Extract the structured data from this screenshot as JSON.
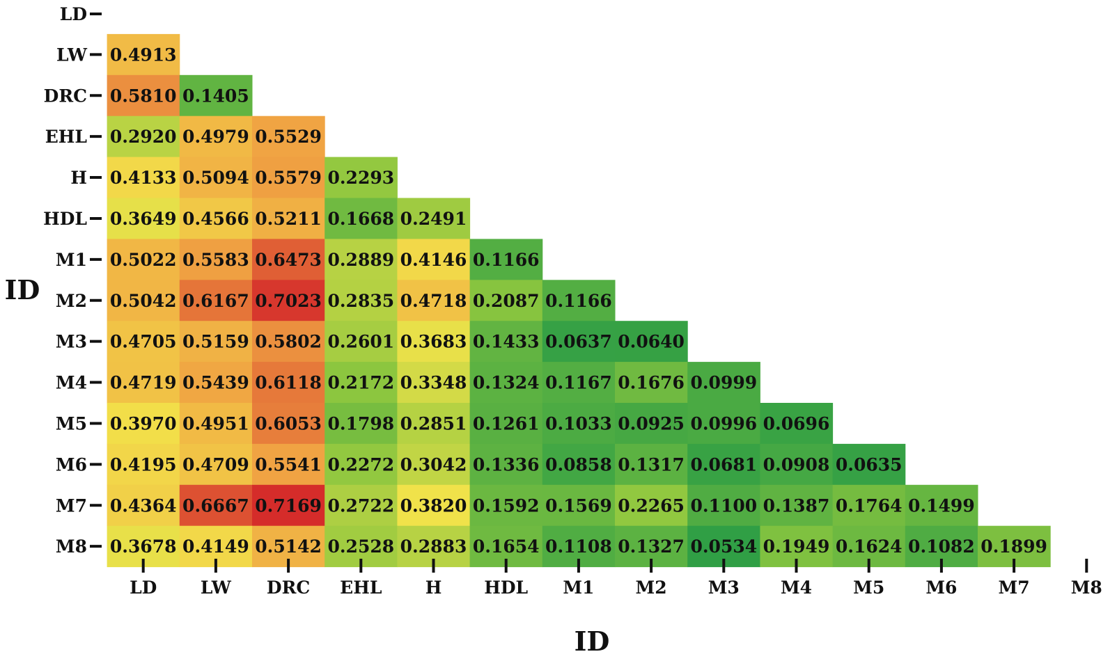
{
  "chart_data": {
    "type": "heatmap",
    "xlabel": "ID",
    "ylabel": "ID",
    "x_categories": [
      "LD",
      "LW",
      "DRC",
      "EHL",
      "H",
      "HDL",
      "M1",
      "M2",
      "M3",
      "M4",
      "M5",
      "M6",
      "M7",
      "M8"
    ],
    "y_categories": [
      "LD",
      "LW",
      "DRC",
      "EHL",
      "H",
      "HDL",
      "M1",
      "M2",
      "M3",
      "M4",
      "M5",
      "M6",
      "M7",
      "M8"
    ],
    "values": [
      [],
      [
        "0.4913"
      ],
      [
        "0.5810",
        "0.1405"
      ],
      [
        "0.2920",
        "0.4979",
        "0.5529"
      ],
      [
        "0.4133",
        "0.5094",
        "0.5579",
        "0.2293"
      ],
      [
        "0.3649",
        "0.4566",
        "0.5211",
        "0.1668",
        "0.2491"
      ],
      [
        "0.5022",
        "0.5583",
        "0.6473",
        "0.2889",
        "0.4146",
        "0.1166"
      ],
      [
        "0.5042",
        "0.6167",
        "0.7023",
        "0.2835",
        "0.4718",
        "0.2087",
        "0.1166"
      ],
      [
        "0.4705",
        "0.5159",
        "0.5802",
        "0.2601",
        "0.3683",
        "0.1433",
        "0.0637",
        "0.0640"
      ],
      [
        "0.4719",
        "0.5439",
        "0.6118",
        "0.2172",
        "0.3348",
        "0.1324",
        "0.1167",
        "0.1676",
        "0.0999"
      ],
      [
        "0.3970",
        "0.4951",
        "0.6053",
        "0.1798",
        "0.2851",
        "0.1261",
        "0.1033",
        "0.0925",
        "0.0996",
        "0.0696"
      ],
      [
        "0.4195",
        "0.4709",
        "0.5541",
        "0.2272",
        "0.3042",
        "0.1336",
        "0.0858",
        "0.1317",
        "0.0681",
        "0.0908",
        "0.0635"
      ],
      [
        "0.4364",
        "0.6667",
        "0.7169",
        "0.2722",
        "0.3820",
        "0.1592",
        "0.1569",
        "0.2265",
        "0.1100",
        "0.1387",
        "0.1764",
        "0.1499"
      ],
      [
        "0.3678",
        "0.4149",
        "0.5142",
        "0.2528",
        "0.2883",
        "0.1654",
        "0.1108",
        "0.1327",
        "0.0534",
        "0.1949",
        "0.1624",
        "0.1082",
        "0.1899"
      ]
    ],
    "colormap": [
      "#2e9e45",
      "#8cc63f",
      "#f2e34a",
      "#f0a443",
      "#d42a2a"
    ],
    "grid": false,
    "legend": "none"
  }
}
